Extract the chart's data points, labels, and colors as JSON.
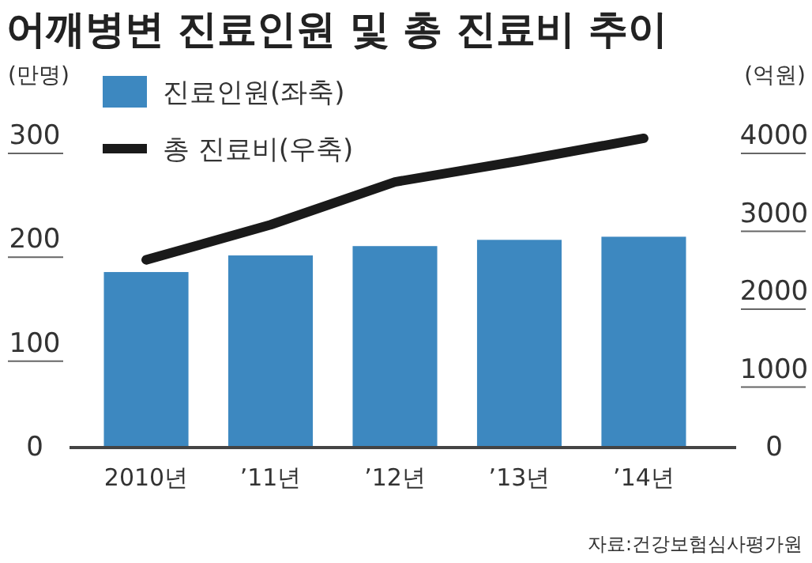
{
  "chart_data": {
    "type": "bar",
    "title": "어깨병변 진료인원 및 총 진료비 추이",
    "ylabel": "(만명)",
    "y2label": "(억원)",
    "categories": [
      "2010년",
      "’11년",
      "’12년",
      "’13년",
      "’14년"
    ],
    "series": [
      {
        "name": "진료인원(좌축)",
        "color": "#3d88c0",
        "values": [
          169,
          185,
          194,
          200,
          203
        ]
      },
      {
        "name": "총 진료비(우축)",
        "type": "line",
        "axis": "y2",
        "color": "#1a1a1a",
        "values": [
          2410,
          2860,
          3410,
          3680,
          3970
        ]
      }
    ],
    "ylim": [
      0,
      300
    ],
    "yticks": [
      0,
      100,
      200,
      300
    ],
    "y2lim": [
      0,
      4000
    ],
    "y2ticks": [
      0,
      1000,
      2000,
      3000,
      4000
    ],
    "legend": "top left",
    "marker": "none",
    "line_style": "solid",
    "annotations": [
      "자료:건강보험심사평가원"
    ]
  }
}
